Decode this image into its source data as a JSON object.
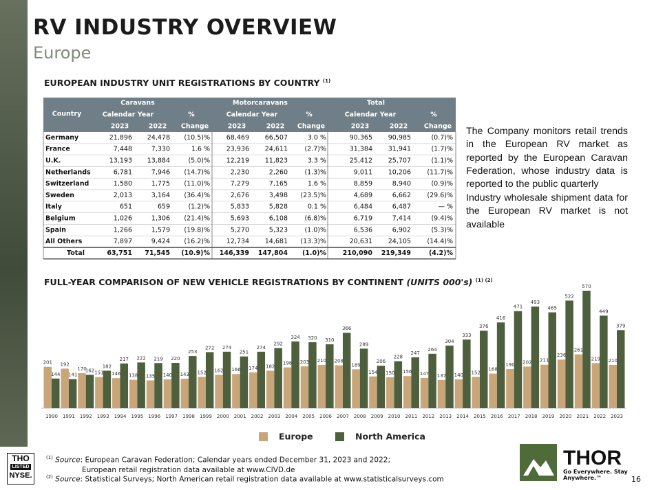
{
  "header": {
    "title": "RV INDUSTRY OVERVIEW",
    "subtitle": "Europe"
  },
  "table": {
    "title": "EUROPEAN INDUSTRY UNIT REGISTRATIONS BY COUNTRY",
    "title_note": "(1)",
    "header": {
      "country": "Country",
      "groups": [
        "Caravans",
        "Motorcaravans",
        "Total"
      ],
      "calendar_year": "Calendar Year",
      "pct": "%",
      "years": [
        "2023",
        "2022"
      ],
      "change": "Change"
    },
    "rows": [
      [
        "Germany",
        "21,896",
        "24,478",
        "(10.5)%",
        "68,469",
        "66,507",
        "3.0 %",
        "90,365",
        "90,985",
        "(0.7)%"
      ],
      [
        "France",
        "7,448",
        "7,330",
        "1.6 %",
        "23,936",
        "24,611",
        "(2.7)%",
        "31,384",
        "31,941",
        "(1.7)%"
      ],
      [
        "U.K.",
        "13,193",
        "13,884",
        "(5.0)%",
        "12,219",
        "11,823",
        "3.3 %",
        "25,412",
        "25,707",
        "(1.1)%"
      ],
      [
        "Netherlands",
        "6,781",
        "7,946",
        "(14.7)%",
        "2,230",
        "2,260",
        "(1.3)%",
        "9,011",
        "10,206",
        "(11.7)%"
      ],
      [
        "Switzerland",
        "1,580",
        "1,775",
        "(11.0)%",
        "7,279",
        "7,165",
        "1.6 %",
        "8,859",
        "8,940",
        "(0.9)%"
      ],
      [
        "Sweden",
        "2,013",
        "3,164",
        "(36.4)%",
        "2,676",
        "3,498",
        "(23.5)%",
        "4,689",
        "6,662",
        "(29.6)%"
      ],
      [
        "Italy",
        "651",
        "659",
        "(1.2)%",
        "5,833",
        "5,828",
        "0.1 %",
        "6,484",
        "6,487",
        "— %"
      ],
      [
        "Belgium",
        "1,026",
        "1,306",
        "(21.4)%",
        "5,693",
        "6,108",
        "(6.8)%",
        "6,719",
        "7,414",
        "(9.4)%"
      ],
      [
        "Spain",
        "1,266",
        "1,579",
        "(19.8)%",
        "5,270",
        "5,323",
        "(1.0)%",
        "6,536",
        "6,902",
        "(5.3)%"
      ],
      [
        "All Others",
        "7,897",
        "9,424",
        "(16.2)%",
        "12,734",
        "14,681",
        "(13.3)%",
        "20,631",
        "24,105",
        "(14.4)%"
      ]
    ],
    "total": [
      "Total",
      "63,751",
      "71,545",
      "(10.9)%",
      "146,339",
      "147,804",
      "(1.0)%",
      "210,090",
      "219,349",
      "(4.2)%"
    ]
  },
  "notes": [
    "The Company monitors retail trends in the European RV market as reported by the European Caravan Federation, whose industry data is reported to the public quarterly",
    "Industry wholesale shipment data for the European RV market is not available"
  ],
  "chart_data": {
    "type": "bar",
    "title": "FULL-YEAR COMPARISON OF NEW VEHICLE REGISTRATIONS BY CONTINENT",
    "title_units": "(UNITS 000's)",
    "title_note": "(1) (2)",
    "categories": [
      "1990",
      "1991",
      "1992",
      "1993",
      "1994",
      "1995",
      "1996",
      "1997",
      "1998",
      "1999",
      "2000",
      "2001",
      "2002",
      "2003",
      "2004",
      "2005",
      "2006",
      "2007",
      "2008",
      "2009",
      "2010",
      "2011",
      "2012",
      "2013",
      "2014",
      "2015",
      "2016",
      "2017",
      "2018",
      "2019",
      "2020",
      "2021",
      "2022",
      "2023"
    ],
    "series": [
      {
        "name": "Europe",
        "color": "#c8a67a",
        "values": [
          201,
          192,
          170,
          151,
          146,
          138,
          135,
          140,
          143,
          152,
          162,
          166,
          174,
          182,
          198,
          203,
          210,
          208,
          189,
          154,
          150,
          156,
          147,
          137,
          140,
          152,
          168,
          190,
          202,
          211,
          236,
          261,
          219,
          210
        ]
      },
      {
        "name": "North America",
        "color": "#4e5f3d",
        "values": [
          144,
          141,
          162,
          182,
          217,
          222,
          219,
          220,
          253,
          272,
          274,
          251,
          274,
          292,
          324,
          320,
          310,
          366,
          289,
          206,
          228,
          247,
          264,
          304,
          333,
          376,
          416,
          471,
          493,
          465,
          522,
          570,
          449,
          379
        ]
      }
    ]
  },
  "footnotes": [
    {
      "marker": "(1)",
      "label": "Source",
      "text": ": European Caravan Federation; Calendar years ended December 31, 2023 and 2022;",
      "text_line2": "European retail registration data available at www.CIVD.de"
    },
    {
      "marker": "(2)",
      "label": "Source",
      "text": ": Statistical Surveys; North American retail registration data available at www.statisticalsurveys.com"
    }
  ],
  "nyse_logo": {
    "line1": "THO",
    "line2": "LISTED",
    "line3": "NYSE."
  },
  "brand": {
    "name": "THOR",
    "tagline": "Go Everywhere. Stay Anywhere.™"
  },
  "page_number": "16"
}
